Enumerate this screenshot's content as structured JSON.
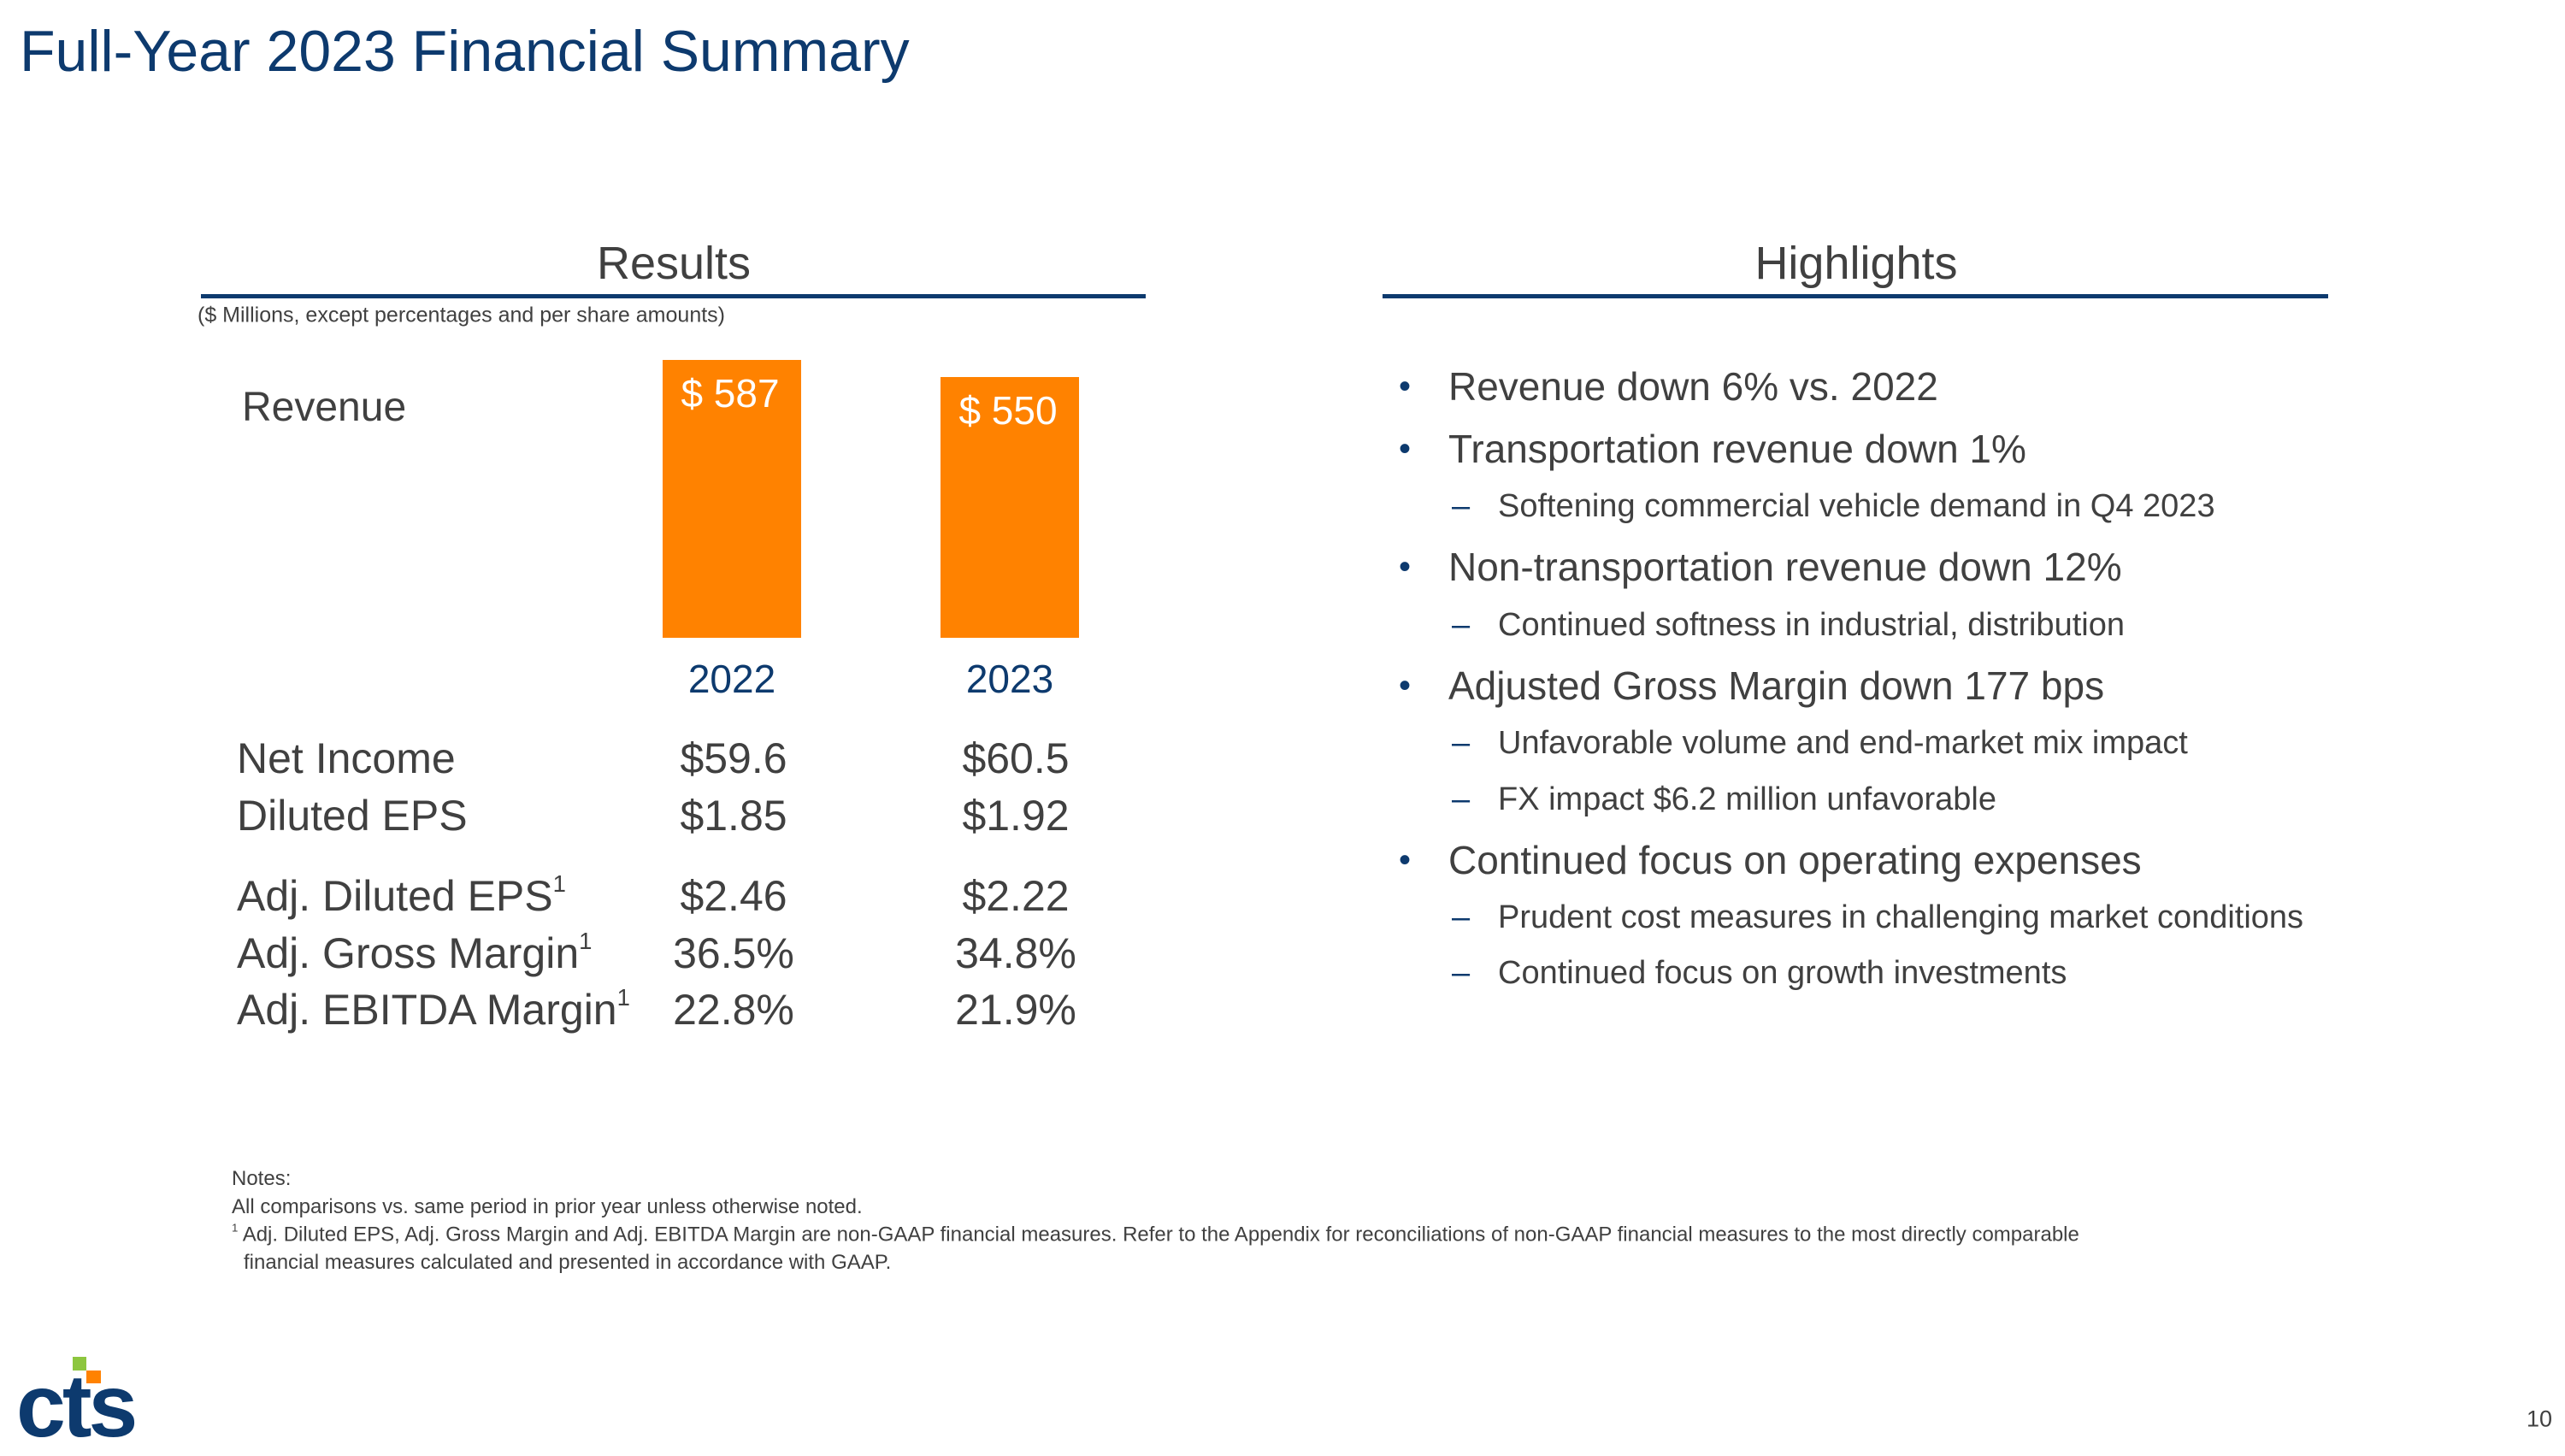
{
  "title": "Full-Year 2023 Financial Summary",
  "results": {
    "heading": "Results",
    "units_note": "($ Millions, except percentages and per share amounts)",
    "revenue_label": "Revenue",
    "years": [
      "2022",
      "2023"
    ],
    "rows": [
      {
        "label": "Net Income",
        "sup": "",
        "v2022": "$59.6",
        "v2023": "$60.5"
      },
      {
        "label": "Diluted EPS",
        "sup": "",
        "v2022": "$1.85",
        "v2023": "$1.92"
      },
      {
        "label": "Adj. Diluted EPS",
        "sup": "1",
        "v2022": "$2.46",
        "v2023": "$2.22"
      },
      {
        "label": "Adj. Gross Margin",
        "sup": "1",
        "v2022": "36.5%",
        "v2023": "34.8%"
      },
      {
        "label": "Adj. EBITDA Margin",
        "sup": "1",
        "v2022": "22.8%",
        "v2023": "21.9%"
      }
    ]
  },
  "chart_data": {
    "type": "bar",
    "title": "Revenue",
    "categories": [
      "2022",
      "2023"
    ],
    "values": [
      587,
      550
    ],
    "data_labels": [
      "$ 587",
      "$ 550"
    ],
    "ylabel": "",
    "xlabel": "",
    "ylim": [
      0,
      587
    ],
    "color": "#ff8200"
  },
  "highlights": {
    "heading": "Highlights",
    "items": [
      {
        "level": 1,
        "text": "Revenue down 6% vs. 2022"
      },
      {
        "level": 1,
        "text": "Transportation revenue down 1%"
      },
      {
        "level": 2,
        "text": "Softening commercial vehicle demand in Q4 2023"
      },
      {
        "level": 1,
        "text": "Non-transportation revenue down 12%"
      },
      {
        "level": 2,
        "text": "Continued softness in industrial, distribution"
      },
      {
        "level": 1,
        "text": "Adjusted Gross Margin down 177 bps"
      },
      {
        "level": 2,
        "text": "Unfavorable volume and end-market mix impact"
      },
      {
        "level": 2,
        "text": "FX impact $6.2 million unfavorable"
      },
      {
        "level": 1,
        "text": "Continued focus on operating expenses"
      },
      {
        "level": 2,
        "text": "Prudent cost measures in challenging market conditions"
      },
      {
        "level": 2,
        "text": "Continued focus on growth investments"
      }
    ]
  },
  "notes": {
    "heading": "Notes:",
    "line1": "All comparisons vs. same period in prior year unless otherwise noted.",
    "footnote_mark": "1",
    "line2": "Adj. Diluted EPS, Adj. Gross Margin and Adj. EBITDA Margin are non-GAAP financial measures. Refer to the Appendix for reconciliations of non-GAAP financial measures to the most directly comparable",
    "line3": "financial measures calculated and presented in accordance with GAAP."
  },
  "logo_text": "cts",
  "colors": {
    "navy": "#0d3a6e",
    "orange": "#ff8200",
    "green": "#8dc63f"
  },
  "page_number": "10"
}
